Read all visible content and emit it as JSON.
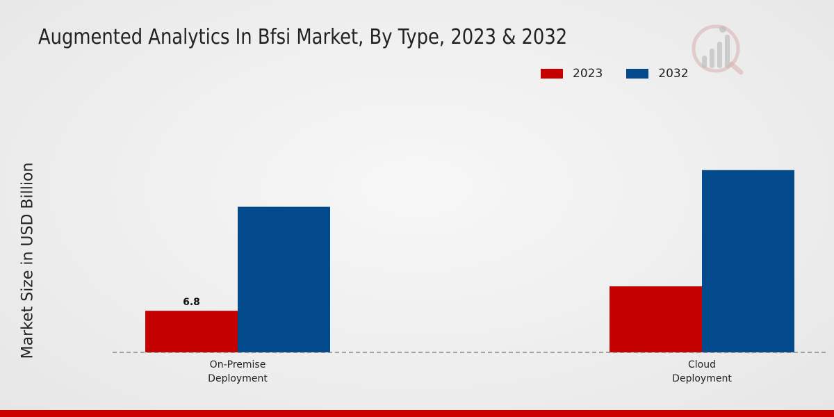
{
  "chart_data": {
    "type": "bar",
    "title": "Augmented Analytics In Bfsi Market, By Type, 2023 & 2032",
    "xlabel": "",
    "ylabel": "Market Size in USD Billion",
    "categories": [
      {
        "line1": "On-Premise",
        "line2": "Deployment"
      },
      {
        "line1": "Cloud",
        "line2": "Deployment"
      }
    ],
    "series": [
      {
        "name": "2023",
        "color": "#c40000",
        "values": [
          6.8,
          10.8
        ]
      },
      {
        "name": "2032",
        "color": "#034a8c",
        "values": [
          23.8,
          29.8
        ]
      }
    ],
    "data_labels": [
      {
        "series": 0,
        "category": 0,
        "text": "6.8"
      }
    ],
    "ylim": [
      0,
      40
    ],
    "grid": false,
    "legend_position": "top-right"
  },
  "colors": {
    "accent": "#cc0000",
    "bar_2023": "#c40000",
    "bar_2032": "#034a8c"
  },
  "logo": {
    "icon": "brand-logo-icon"
  }
}
